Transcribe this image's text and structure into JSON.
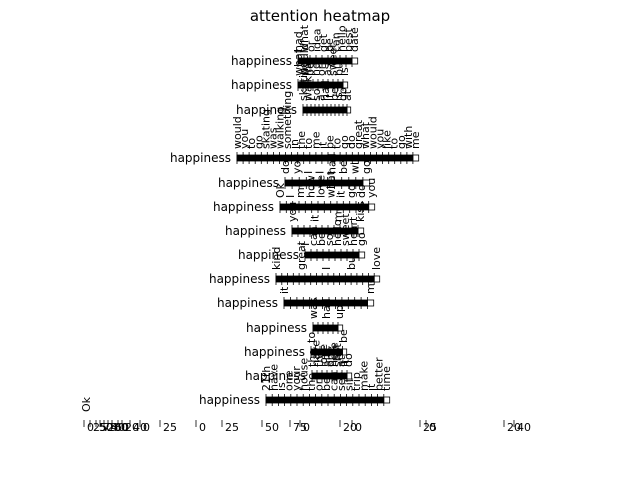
{
  "chart_data": {
    "type": "heatmap",
    "title": "attention heatmap",
    "xlabel": "",
    "ylabel": "",
    "colors": {
      "cell": "#000000",
      "background": "#ffffff",
      "text": "#000000"
    },
    "rows": [
      {
        "label": "happiness",
        "cells": 10,
        "tokens": [
          "had",
          "what",
          "or",
          "idea",
          "get",
          "be",
          "can",
          "hello",
          "best",
          "date"
        ]
      },
      {
        "label": "happiness",
        "cells": 10,
        "tokens": [
          "what",
          "would",
          "be",
          "no",
          "or",
          "as",
          "sweet",
          "but",
          "is"
        ]
      },
      {
        "label": "happiness",
        "cells": 12,
        "tokens": [
          "skating",
          "walking",
          "I",
          "so",
          "a",
          "had",
          "it",
          "be",
          "is",
          "do",
          "at"
        ]
      },
      {
        "label": "happiness",
        "cells": 30,
        "tokens": [
          "would",
          "you",
          "to",
          "go",
          "skating",
          "was",
          "walking",
          "something",
          "in",
          "the",
          "to",
          "me",
          "it",
          "be",
          "to",
          "go",
          "do",
          "great",
          "what",
          "would",
          "you",
          "like",
          "to",
          "go",
          "with",
          "me"
        ]
      },
      {
        "label": "happiness",
        "cells": 12,
        "tokens": [
          "do",
          "you",
          "I",
          "I",
          "had",
          "be",
          "will",
          "go"
        ]
      },
      {
        "label": "happiness",
        "cells": 15,
        "tokens": [
          "Ok",
          "I",
          "me",
          "how",
          "love",
          "what",
          "it",
          "go",
          "do",
          "you"
        ]
      },
      {
        "label": "happiness",
        "cells": 12,
        "tokens": [
          "you",
          "it",
          "me",
          "kiss"
        ]
      },
      {
        "label": "happiness",
        "cells": 10,
        "tokens": [
          "I",
          "can",
          "be",
          "so",
          "hello",
          "sweet",
          "heart",
          "go"
        ]
      },
      {
        "label": "happiness",
        "cells": 18,
        "tokens": [
          "kind",
          "great",
          "I",
          "but",
          "love"
        ]
      },
      {
        "label": "happiness",
        "cells": 14,
        "tokens": [
          "it",
          "me"
        ]
      },
      {
        "label": "happiness",
        "cells": 6,
        "tokens": [
          "was",
          "had",
          "up"
        ]
      },
      {
        "label": "happiness",
        "cells": 8,
        "tokens": [
          "to",
          "be"
        ]
      },
      {
        "label": "happiness",
        "cells": 8,
        "tokens": [
          "the",
          "have",
          "the",
          "love",
          "all",
          "one",
          "here",
          "shot",
          "at",
          "it",
          "do"
        ]
      },
      {
        "label": "happiness",
        "cells": 20,
        "tokens": [
          "21th",
          "have",
          "is",
          "one",
          "your",
          "house",
          "the",
          "or",
          "be",
          "can",
          "see",
          "sit",
          "trip",
          "make",
          "it",
          "better",
          "time"
        ]
      }
    ],
    "bottom_label": "Ok",
    "x_tick_labels": [
      "0",
      "25",
      "50",
      "75",
      "20",
      "40",
      "60",
      "0",
      "20",
      "40",
      "0",
      "25",
      "0",
      "25",
      "50",
      "75",
      "0",
      "20",
      "0",
      "25",
      "0",
      "20",
      "40"
    ]
  }
}
